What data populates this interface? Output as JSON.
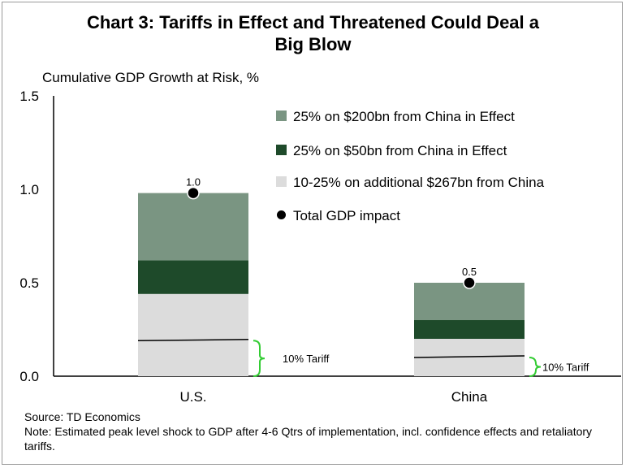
{
  "title": "Chart 3: Tariffs in Effect and Threatened Could Deal a Big Blow",
  "title_line1": "Chart 3: Tariffs in Effect and Threatened Could Deal a",
  "title_line2": "Big Blow",
  "ylabel": "Cumulative GDP Growth at Risk, %",
  "source": "Source: TD Economics",
  "note": "Note: Estimated peak level shock to GDP after 4-6 Qtrs of implementation, incl. confidence effects and retaliatory tariffs.",
  "colors": {
    "s200": "#7a9582",
    "s50": "#1e4a2a",
    "s267": "#dcdcdc",
    "dot": "#000000",
    "bracket": "#33cc33"
  },
  "chart_data": {
    "type": "bar",
    "stacked": true,
    "categories": [
      "U.S.",
      "China"
    ],
    "series": [
      {
        "name": "10-25% on additional $267bn from China",
        "values": [
          0.44,
          0.2
        ]
      },
      {
        "name": "25% on $50bn from China in Effect",
        "values": [
          0.18,
          0.1
        ]
      },
      {
        "name": "25% on $200bn from China in Effect",
        "values": [
          0.36,
          0.2
        ]
      }
    ],
    "totals": {
      "name": "Total GDP impact",
      "values": [
        0.98,
        0.5
      ],
      "labels": [
        "1.0",
        "0.5"
      ]
    },
    "tariff10": {
      "label": "10% Tariff",
      "values": [
        0.19,
        0.1
      ]
    },
    "title": "Chart 3: Tariffs in Effect and Threatened Could Deal a Big Blow",
    "ylabel": "Cumulative GDP Growth at Risk, %",
    "xlabel": "",
    "ylim": [
      0,
      1.5
    ],
    "yticks": [
      "0.0",
      "0.5",
      "1.0",
      "1.5"
    ],
    "ytick_values": [
      0,
      0.5,
      1.0,
      1.5
    ],
    "legend": [
      "25% on $200bn from China in Effect",
      "25% on $50bn from China in Effect",
      "10-25% on additional $267bn from China",
      "Total GDP impact"
    ],
    "legend_position": "top-right",
    "grid": false
  }
}
